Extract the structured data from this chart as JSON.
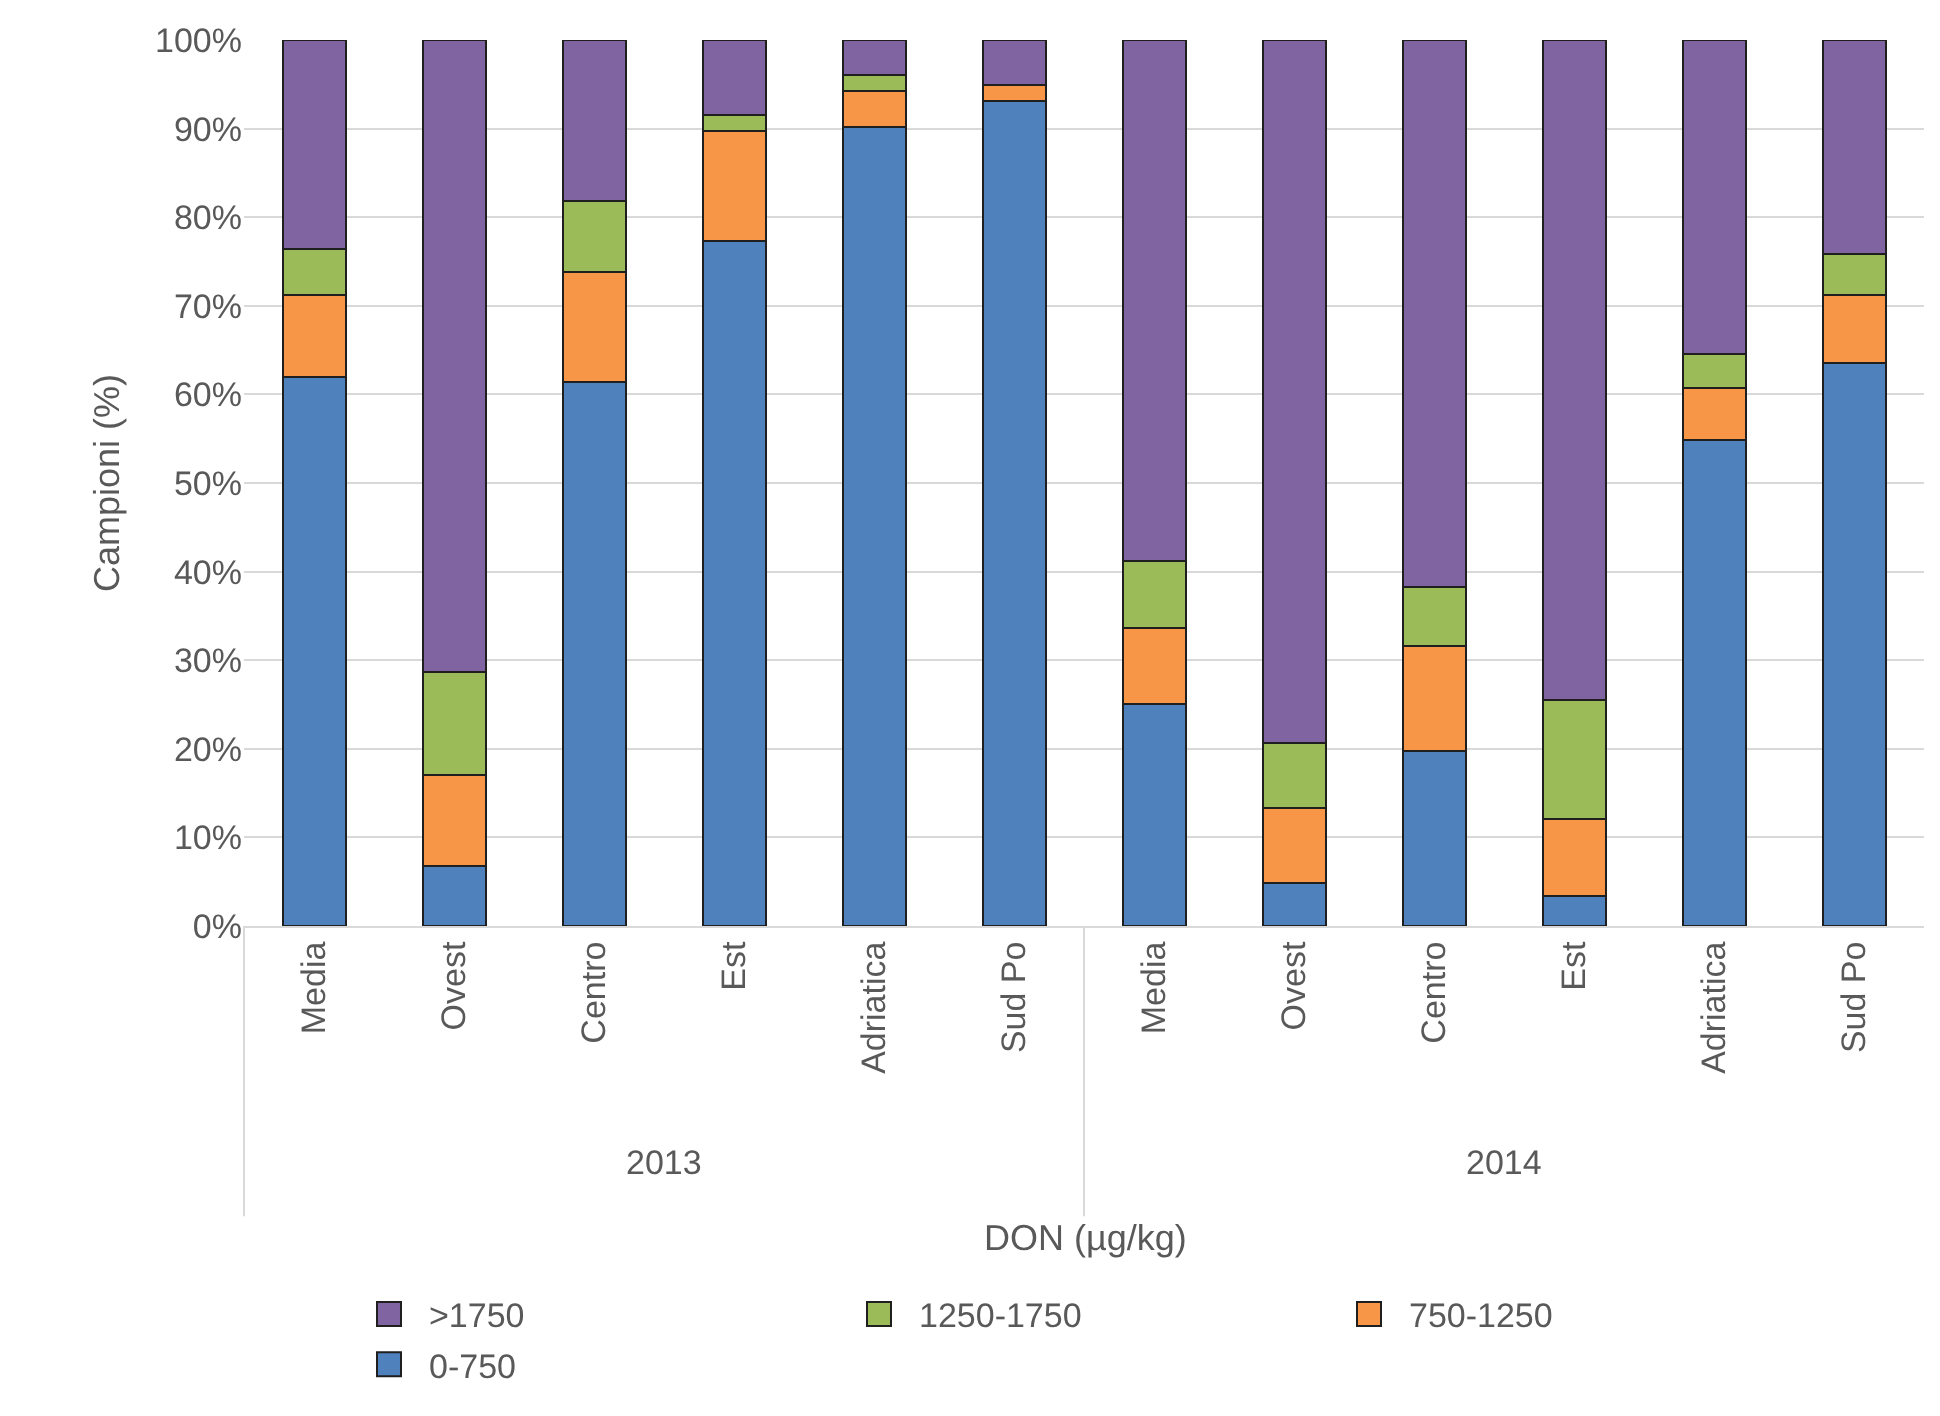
{
  "chart_data": {
    "type": "bar",
    "stacked": true,
    "ylabel": "Campioni (%)",
    "xlabel": "DON (µg/kg)",
    "categories": [
      "Media",
      "Ovest",
      "Centro",
      "Est",
      "Adriatica",
      "Sud Po",
      "Media",
      "Ovest",
      "Centro",
      "Est",
      "Adriatica",
      "Sud Po"
    ],
    "annotations": [
      "2013",
      "2014"
    ],
    "series": [
      {
        "name": "0-750",
        "color": "#4f81bd",
        "values": [
          62.0,
          6.8,
          61.4,
          77.3,
          90.2,
          93.1,
          25.1,
          4.9,
          19.8,
          3.4,
          54.8,
          63.5
        ]
      },
      {
        "name": "750-1250",
        "color": "#f79646",
        "values": [
          9.2,
          10.2,
          12.4,
          12.4,
          4.0,
          1.8,
          8.5,
          8.4,
          11.8,
          8.7,
          5.9,
          7.7
        ]
      },
      {
        "name": "1250-1750",
        "color": "#9bbb59",
        "values": [
          5.2,
          11.7,
          8.0,
          1.8,
          1.9,
          0,
          7.6,
          7.3,
          6.7,
          13.4,
          3.9,
          4.6
        ]
      },
      {
        "name": ">1750",
        "color": "#8064a2",
        "values": [
          23.6,
          71.3,
          18.2,
          8.5,
          3.9,
          5.1,
          58.8,
          79.4,
          61.7,
          74.5,
          35.4,
          24.2
        ]
      }
    ],
    "ylim": [
      0,
      100
    ],
    "yticks": [
      {
        "value": 0,
        "label": "0%"
      },
      {
        "value": 10,
        "label": "10%"
      },
      {
        "value": 20,
        "label": "20%"
      },
      {
        "value": 30,
        "label": "30%"
      },
      {
        "value": 40,
        "label": "40%"
      },
      {
        "value": 50,
        "label": "50%"
      },
      {
        "value": 60,
        "label": "60%"
      },
      {
        "value": 70,
        "label": "70%"
      },
      {
        "value": 80,
        "label": "80%"
      },
      {
        "value": 90,
        "label": "90%"
      },
      {
        "value": 100,
        "label": "100%"
      }
    ],
    "grid": "y",
    "legend": "bottom"
  }
}
